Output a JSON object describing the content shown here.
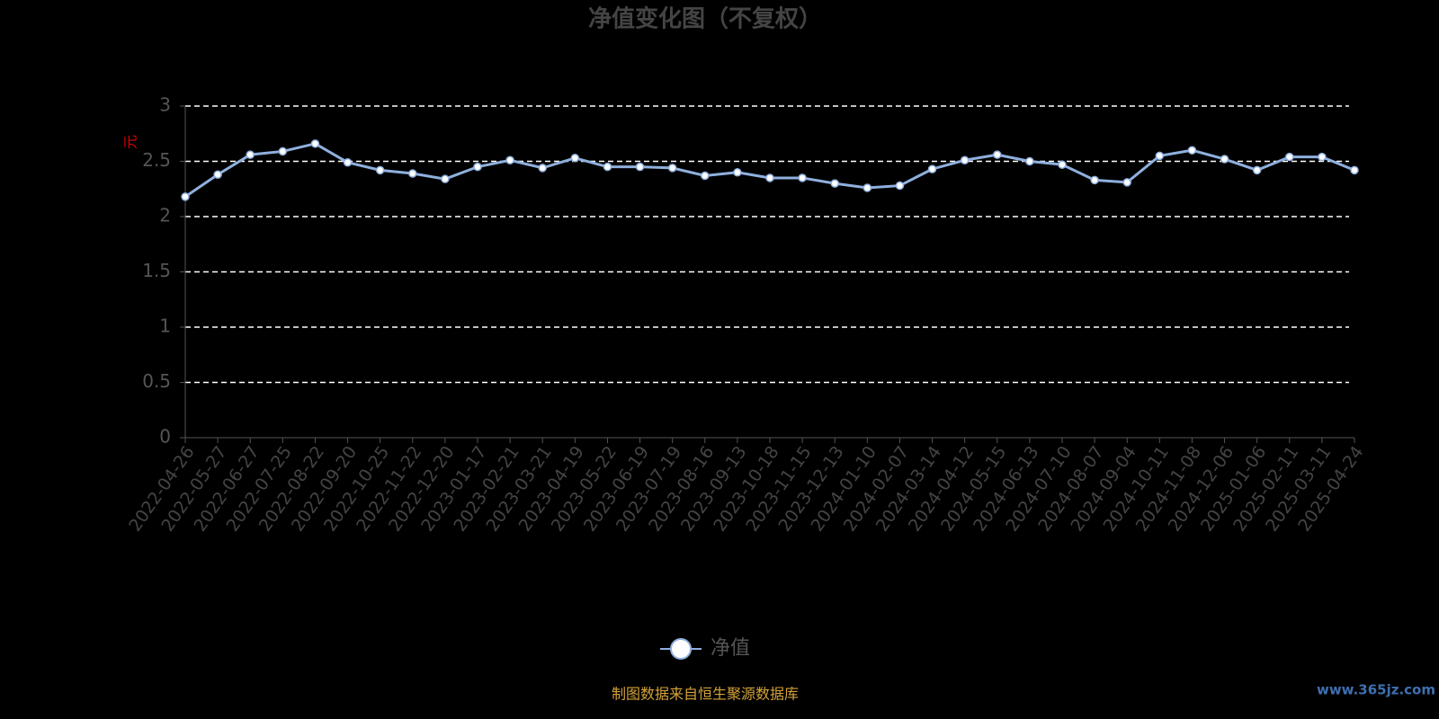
{
  "chart_data": {
    "type": "line",
    "title": "净值变化图（不复权）",
    "y_label": "元",
    "categories": [
      "2022-04-26",
      "2022-05-27",
      "2022-06-27",
      "2022-07-25",
      "2022-08-22",
      "2022-09-20",
      "2022-10-25",
      "2022-11-22",
      "2022-12-20",
      "2023-01-17",
      "2023-02-21",
      "2023-03-21",
      "2023-04-19",
      "2023-05-22",
      "2023-06-19",
      "2023-07-19",
      "2023-08-16",
      "2023-09-13",
      "2023-10-18",
      "2023-11-15",
      "2023-12-13",
      "2024-01-10",
      "2024-02-07",
      "2024-03-14",
      "2024-04-12",
      "2024-05-15",
      "2024-06-13",
      "2024-07-10",
      "2024-08-07",
      "2024-09-04",
      "2024-10-11",
      "2024-11-08",
      "2024-12-06",
      "2025-01-06",
      "2025-02-11",
      "2025-03-11",
      "2025-04-24"
    ],
    "series": [
      {
        "name": "净值",
        "color": "#8fb0de",
        "values": [
          2.18,
          2.38,
          2.56,
          2.59,
          2.66,
          2.49,
          2.42,
          2.39,
          2.34,
          2.45,
          2.51,
          2.44,
          2.53,
          2.45,
          2.45,
          2.44,
          2.37,
          2.4,
          2.35,
          2.35,
          2.3,
          2.26,
          2.28,
          2.43,
          2.51,
          2.56,
          2.5,
          2.47,
          2.33,
          2.31,
          2.55,
          2.6,
          2.52,
          2.42,
          2.54,
          2.54,
          2.42
        ]
      }
    ],
    "ylim": [
      0,
      3
    ],
    "yticks": [
      0,
      0.5,
      1,
      1.5,
      2,
      2.5,
      3
    ],
    "grid": true,
    "source": "制图数据来自恒生聚源数据库",
    "watermark": "www.365jz.com"
  }
}
